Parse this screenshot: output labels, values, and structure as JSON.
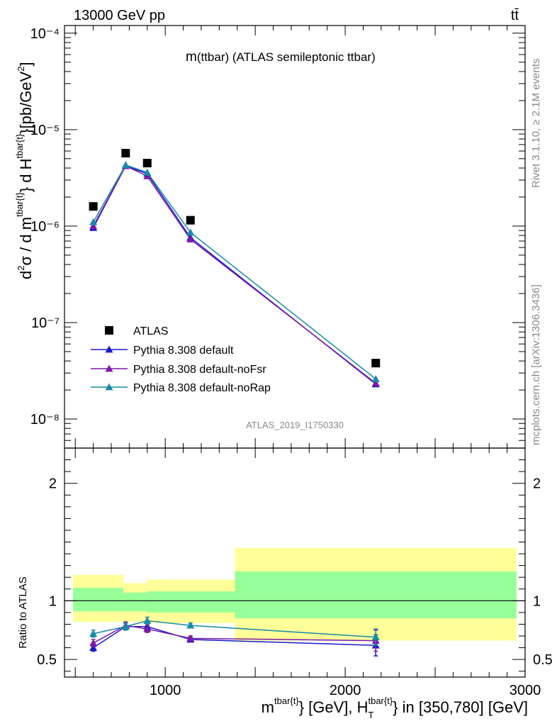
{
  "header": {
    "energy": "13000 GeV pp",
    "process": "tt̄",
    "rivet": "Rivet 3.1.10, ≥ 2.1M events",
    "site": "mcplots.cern.ch [arXiv:1306.3436]",
    "analysis": "ATLAS_2019_I1750330"
  },
  "colors": {
    "atlas": "#000000",
    "default": "#1a1acc",
    "noFsr": "#7a1aa8",
    "noRap": "#1a8aa8",
    "band_outer": "#ffff99",
    "band_inner": "#99ff99"
  },
  "chart_data": [
    {
      "type": "scatter",
      "title": "m(ttbar) (ATLAS semileptonic ttbar)",
      "title_main": "m",
      "title_rest": "(ttbar) (ATLAS semileptonic ttbar)",
      "ylabel": "d²σ / d m^tbar{t}} d H_T^tbar{t}}[pb/GeV²]",
      "yscale": "log",
      "ylim": [
        5e-09,
        0.00012
      ],
      "xlim": [
        440,
        3000
      ],
      "ytick_labels": [
        "10⁻⁸",
        "10⁻⁷",
        "10⁻⁶",
        "10⁻⁵",
        "10⁻⁴"
      ],
      "x": [
        600,
        780,
        900,
        1140,
        2170
      ],
      "legend_position": "middle-left",
      "series": [
        {
          "name": "ATLAS",
          "style": "square",
          "values": [
            1.6e-06,
            5.7e-06,
            4.5e-06,
            1.15e-06,
            3.8e-08
          ]
        },
        {
          "name": "Pythia 8.308 default",
          "style": "line",
          "values": [
            9.6e-07,
            4.2e-06,
            3.5e-06,
            7.6e-07,
            2.3e-08
          ]
        },
        {
          "name": "Pythia 8.308 default-noFsr",
          "style": "line",
          "values": [
            1e-06,
            4.2e-06,
            3.3e-06,
            7.3e-07,
            2.35e-08
          ]
        },
        {
          "name": "Pythia 8.308 default-noRap",
          "style": "line",
          "values": [
            1.1e-06,
            4.3e-06,
            3.6e-06,
            8.6e-07,
            2.6e-08
          ]
        }
      ]
    },
    {
      "type": "scatter",
      "xlabel": "m^tbar{t}} [GeV], H_T^tbar{t}} in [350,780] [GeV]",
      "xlabel_parts": {
        "m": "m",
        "sup1": "tbar{t}",
        "mid": "} [GeV], H",
        "sub": "T",
        "sup2": "tbar{t}",
        "end": "} in [350,780] [GeV]"
      },
      "ylabel": "Ratio to ATLAS",
      "ylim": [
        0.35,
        2.3
      ],
      "xlim": [
        440,
        3000
      ],
      "xticks": [
        1000,
        2000,
        3000
      ],
      "xtick_labels": [
        "1000",
        "2000",
        "3000"
      ],
      "yticks": [
        0.5,
        1,
        2
      ],
      "ytick_labels": [
        "0.5",
        "1",
        "2"
      ],
      "bands": {
        "edges": [
          440,
          720,
          850,
          1340,
          3000
        ],
        "outer": [
          [
            0.82,
            1.22
          ],
          [
            0.82,
            1.15
          ],
          [
            0.81,
            1.18
          ],
          [
            0.66,
            1.45
          ]
        ],
        "inner": [
          [
            0.91,
            1.11
          ],
          [
            0.91,
            1.07
          ],
          [
            0.9,
            1.08
          ],
          [
            0.85,
            1.25
          ]
        ]
      },
      "x": [
        600,
        780,
        900,
        1140,
        2170
      ],
      "series": [
        {
          "name": "Pythia 8.308 default",
          "values": [
            0.6,
            0.78,
            0.78,
            0.67,
            0.62
          ],
          "err": [
            0.03,
            0.03,
            0.03,
            0.02,
            0.09
          ]
        },
        {
          "name": "Pythia 8.308 default-noFsr",
          "values": [
            0.64,
            0.79,
            0.76,
            0.68,
            0.66
          ],
          "err": [
            0.03,
            0.03,
            0.03,
            0.02,
            0.09
          ]
        },
        {
          "name": "Pythia 8.308 default-noRap",
          "values": [
            0.72,
            0.78,
            0.83,
            0.79,
            0.69
          ],
          "err": [
            0.03,
            0.03,
            0.03,
            0.02,
            0.07
          ]
        }
      ]
    }
  ]
}
